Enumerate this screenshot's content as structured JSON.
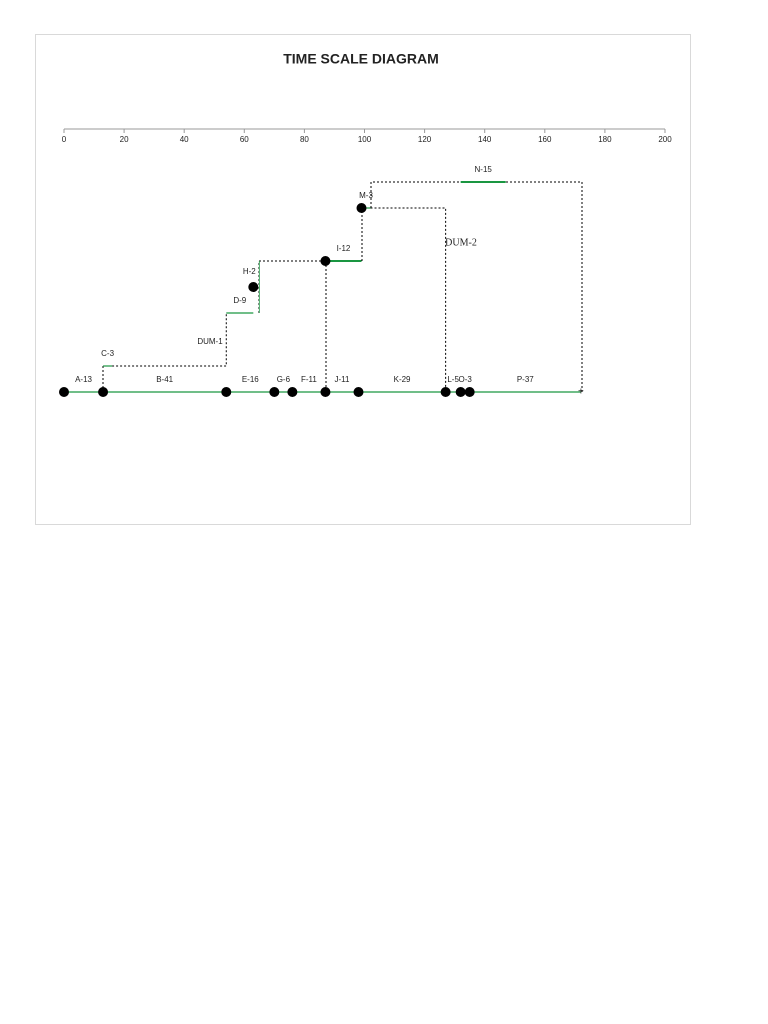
{
  "chart_data": {
    "type": "timescale",
    "title": "TIME SCALE DIAGRAM",
    "xlim": [
      0,
      200
    ],
    "xticks": [
      0,
      20,
      40,
      60,
      80,
      100,
      120,
      140,
      160,
      180,
      200
    ],
    "color": "#1a9641",
    "activities": [
      {
        "label": "A-13",
        "start": 0,
        "end": 13
      },
      {
        "label": "B-41",
        "start": 13,
        "end": 54
      },
      {
        "label": "C-3",
        "start": 13,
        "end": 16
      },
      {
        "label": "D-9",
        "start": 54,
        "end": 63
      },
      {
        "label": "E-16",
        "start": 54,
        "end": 70
      },
      {
        "label": "G-6",
        "start": 70,
        "end": 76
      },
      {
        "label": "F-11",
        "start": 76,
        "end": 87
      },
      {
        "label": "H-2",
        "start": 63,
        "end": 65
      },
      {
        "label": "I-12",
        "start": 87,
        "end": 99
      },
      {
        "label": "J-11",
        "start": 87,
        "end": 98
      },
      {
        "label": "K-29",
        "start": 98,
        "end": 127
      },
      {
        "label": "L-5",
        "start": 127,
        "end": 132
      },
      {
        "label": "O-3",
        "start": 132,
        "end": 135
      },
      {
        "label": "M-3",
        "start": 99,
        "end": 102
      },
      {
        "label": "N-15",
        "start": 132,
        "end": 147
      },
      {
        "label": "P-37",
        "start": 135,
        "end": 172
      }
    ],
    "dummies": [
      {
        "label": "DUM-1",
        "start": 16,
        "end": 54
      },
      {
        "label": "DUM-2",
        "start": 102,
        "end": 127
      }
    ],
    "nodes": [
      0,
      13,
      54,
      70,
      76,
      87,
      98,
      127,
      132,
      135,
      63,
      87,
      99
    ]
  }
}
